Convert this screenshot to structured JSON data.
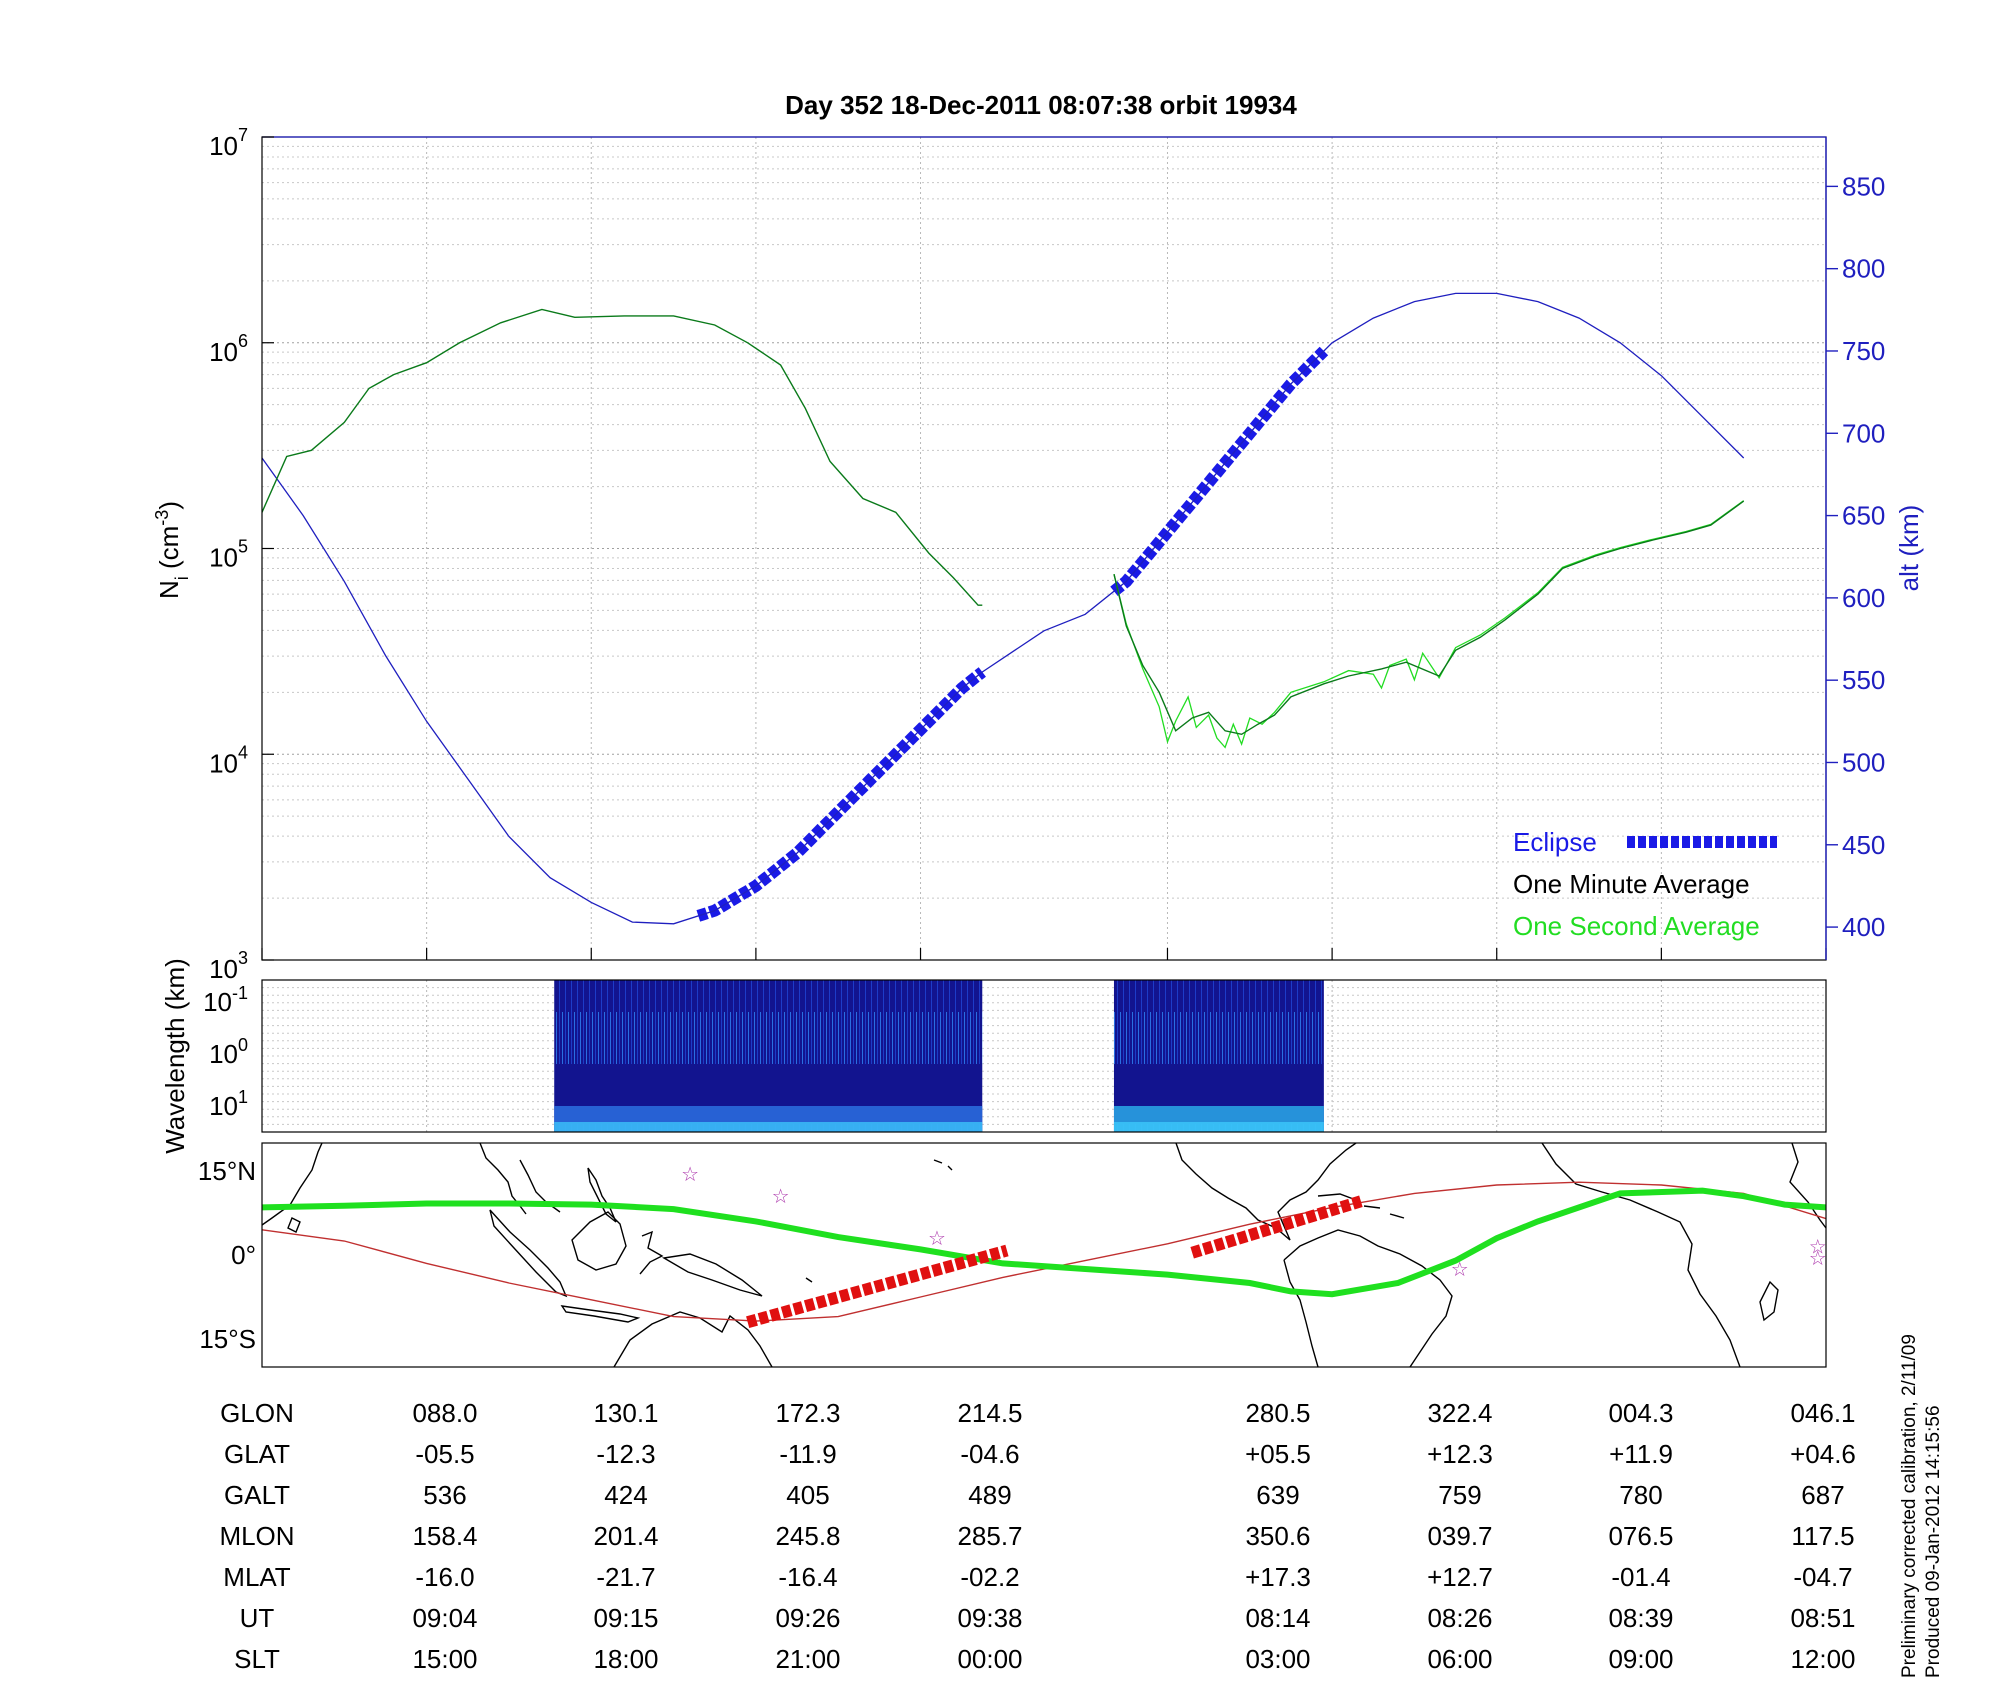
{
  "title": "Day 352  18-Dec-2011 08:07:38   orbit 19934",
  "footnote": {
    "line1": "Preliminary corrected calibration, 2/11/09",
    "line2": "Produced 09-Jan-2012 14:15:56"
  },
  "colors": {
    "density": "#0a7a1a",
    "density_second": "#22dd22",
    "altitude": "#1f1fbf",
    "eclipse": "#1a1ae6",
    "eclipse_map": "#e01010",
    "track": "#1fe01f",
    "mag_equator": "#c03030",
    "spectrogram": "#12148f",
    "stars": "#b040b0"
  },
  "chart_data": [
    {
      "type": "line",
      "title": "Day 352  18-Dec-2011 08:07:38   orbit 19934",
      "ylabel_left": {
        "main": "N",
        "sub": "i",
        "unit_pre": " (cm",
        "unit_sup": "-3",
        "unit_post": ")"
      },
      "ylabel_right": "alt (km)",
      "y_left_scale": "log",
      "y_left_lim": [
        1000,
        10000000
      ],
      "y_left_ticks": [
        {
          "base": "10",
          "exp": "3",
          "value": 1000
        },
        {
          "base": "10",
          "exp": "4",
          "value": 10000
        },
        {
          "base": "10",
          "exp": "5",
          "value": 100000
        },
        {
          "base": "10",
          "exp": "6",
          "value": 1000000
        },
        {
          "base": "10",
          "exp": "7",
          "value": 10000000
        }
      ],
      "y_right_lim": [
        380,
        880
      ],
      "y_right_ticks": [
        "400",
        "450",
        "500",
        "550",
        "600",
        "650",
        "700",
        "750",
        "800",
        "850"
      ],
      "x_ticks_ut": [
        "09:04",
        "09:15",
        "09:26",
        "09:38",
        "08:14",
        "08:26",
        "08:39",
        "08:51"
      ],
      "grid": true,
      "legend_position": "bottom-right",
      "legend": [
        "Eclipse",
        "One Minute Average",
        "One Second Average"
      ],
      "series": [
        {
          "name": "One Minute Average",
          "points": [
            [
              0.0,
              150000
            ],
            [
              0.3,
              280000
            ],
            [
              0.6,
              300000
            ],
            [
              1.0,
              410000
            ],
            [
              1.3,
              600000
            ],
            [
              1.6,
              700000
            ],
            [
              2.0,
              800000
            ],
            [
              2.4,
              1000000
            ],
            [
              2.9,
              1250000
            ],
            [
              3.4,
              1450000
            ],
            [
              3.8,
              1330000
            ],
            [
              4.4,
              1350000
            ],
            [
              5.0,
              1350000
            ],
            [
              5.5,
              1220000
            ],
            [
              5.9,
              1000000
            ],
            [
              6.3,
              780000
            ],
            [
              6.6,
              480000
            ],
            [
              6.9,
              265000
            ],
            [
              7.3,
              175000
            ],
            [
              7.7,
              150000
            ],
            [
              8.1,
              95000
            ],
            [
              8.4,
              72000
            ],
            [
              8.7,
              53000
            ],
            [
              8.75,
              53000
            ]
          ]
        },
        {
          "name": "One Minute Average",
          "points": [
            [
              10.35,
              75000
            ],
            [
              10.5,
              42000
            ],
            [
              10.7,
              27000
            ],
            [
              10.9,
              20000
            ],
            [
              11.1,
              13000
            ],
            [
              11.3,
              15000
            ],
            [
              11.5,
              16000
            ],
            [
              11.7,
              13000
            ],
            [
              11.9,
              12500
            ],
            [
              12.1,
              14000
            ],
            [
              12.3,
              15500
            ],
            [
              12.5,
              19000
            ],
            [
              12.9,
              22000
            ],
            [
              13.2,
              24000
            ],
            [
              13.6,
              26000
            ],
            [
              13.9,
              28000
            ],
            [
              14.3,
              24000
            ],
            [
              14.5,
              32000
            ],
            [
              14.8,
              37000
            ],
            [
              15.1,
              45000
            ],
            [
              15.5,
              60000
            ],
            [
              15.8,
              80000
            ],
            [
              16.2,
              92000
            ],
            [
              16.5,
              100000
            ],
            [
              16.9,
              110000
            ],
            [
              17.3,
              120000
            ],
            [
              17.6,
              130000
            ],
            [
              18.0,
              170000
            ]
          ]
        },
        {
          "name": "One Second Average",
          "points": [
            [
              10.35,
              75000
            ],
            [
              10.5,
              43000
            ],
            [
              10.7,
              26000
            ],
            [
              10.9,
              17000
            ],
            [
              11.0,
              11500
            ],
            [
              11.1,
              14500
            ],
            [
              11.25,
              19000
            ],
            [
              11.35,
              13500
            ],
            [
              11.5,
              15500
            ],
            [
              11.6,
              12000
            ],
            [
              11.7,
              10800
            ],
            [
              11.8,
              14000
            ],
            [
              11.9,
              11200
            ],
            [
              12.0,
              15000
            ],
            [
              12.15,
              14000
            ],
            [
              12.3,
              16000
            ],
            [
              12.5,
              20000
            ],
            [
              12.9,
              22500
            ],
            [
              13.2,
              25500
            ],
            [
              13.5,
              24500
            ],
            [
              13.6,
              21000
            ],
            [
              13.7,
              27000
            ],
            [
              13.9,
              29000
            ],
            [
              14.0,
              23000
            ],
            [
              14.1,
              31000
            ],
            [
              14.3,
              23500
            ],
            [
              14.5,
              33000
            ],
            [
              14.8,
              38000
            ],
            [
              15.1,
              46000
            ],
            [
              15.5,
              61000
            ],
            [
              15.8,
              81000
            ],
            [
              16.2,
              93000
            ],
            [
              16.5,
              101000
            ],
            [
              16.9,
              111000
            ],
            [
              17.3,
              121000
            ],
            [
              17.6,
              131000
            ],
            [
              18.0,
              171000
            ]
          ]
        }
      ],
      "altitude_series": {
        "name": "altitude",
        "points": [
          [
            0.0,
            685
          ],
          [
            0.5,
            650
          ],
          [
            1.0,
            610
          ],
          [
            1.5,
            565
          ],
          [
            2.0,
            525
          ],
          [
            2.5,
            490
          ],
          [
            3.0,
            455
          ],
          [
            3.5,
            430
          ],
          [
            4.0,
            415
          ],
          [
            4.5,
            403
          ],
          [
            5.0,
            402
          ],
          [
            5.5,
            410
          ],
          [
            6.0,
            425
          ],
          [
            6.5,
            445
          ],
          [
            7.0,
            470
          ],
          [
            7.5,
            495
          ],
          [
            8.0,
            520
          ],
          [
            8.5,
            545
          ],
          [
            8.75,
            555
          ],
          [
            9.5,
            580
          ],
          [
            10.0,
            590
          ],
          [
            10.5,
            610
          ],
          [
            11.0,
            640
          ],
          [
            11.5,
            670
          ],
          [
            12.0,
            700
          ],
          [
            12.5,
            730
          ],
          [
            13.0,
            755
          ],
          [
            13.5,
            770
          ],
          [
            14.0,
            780
          ],
          [
            14.5,
            785
          ],
          [
            15.0,
            785
          ],
          [
            15.5,
            780
          ],
          [
            16.0,
            770
          ],
          [
            16.5,
            755
          ],
          [
            17.0,
            735
          ],
          [
            17.5,
            710
          ],
          [
            18.0,
            685
          ]
        ]
      },
      "eclipse_segments": [
        [
          5.3,
          8.75
        ],
        [
          10.35,
          12.9
        ]
      ]
    },
    {
      "type": "heatmap",
      "ylabel": "Wavelength (km)",
      "y_ticks": [
        {
          "base": "10",
          "exp": "-1"
        },
        {
          "base": "10",
          "exp": "0"
        },
        {
          "base": "10",
          "exp": "1"
        }
      ],
      "data_segments": [
        [
          3.55,
          8.75
        ],
        [
          10.35,
          12.9
        ]
      ]
    },
    {
      "type": "line",
      "y_ticks": [
        "15°N",
        "0°",
        "15°S"
      ],
      "y_lim": [
        -20,
        20
      ],
      "legend": [],
      "series": [
        {
          "name": "track",
          "points": [
            [
              0,
              8.5
            ],
            [
              1.0,
              8.8
            ],
            [
              2.0,
              9.2
            ],
            [
              3.0,
              9.2
            ],
            [
              4.0,
              9.0
            ],
            [
              5.0,
              8.2
            ],
            [
              6.0,
              6.0
            ],
            [
              7.0,
              3.2
            ],
            [
              8.0,
              1.0
            ],
            [
              9.0,
              -1.5
            ],
            [
              10.0,
              -2.5
            ],
            [
              11.0,
              -3.5
            ],
            [
              12.0,
              -5.0
            ],
            [
              12.5,
              -6.5
            ],
            [
              13.0,
              -7.0
            ],
            [
              13.8,
              -5.0
            ],
            [
              14.5,
              -1.0
            ],
            [
              15.0,
              3.0
            ],
            [
              15.5,
              6.0
            ],
            [
              16.0,
              8.5
            ],
            [
              16.5,
              11.0
            ],
            [
              17.5,
              11.5
            ],
            [
              18.0,
              10.5
            ],
            [
              18.5,
              9.0
            ],
            [
              19.0,
              8.5
            ]
          ]
        },
        {
          "name": "mag_equator",
          "points": [
            [
              0,
              4.5
            ],
            [
              1.0,
              2.5
            ],
            [
              2.0,
              -1.5
            ],
            [
              3.0,
              -5.0
            ],
            [
              4.0,
              -8.0
            ],
            [
              5.0,
              -11.0
            ],
            [
              6.0,
              -11.8
            ],
            [
              7.0,
              -11.0
            ],
            [
              8.0,
              -7.5
            ],
            [
              9.0,
              -4.0
            ],
            [
              10.0,
              -1.0
            ],
            [
              11.0,
              2.0
            ],
            [
              12.0,
              5.5
            ],
            [
              13.0,
              8.5
            ],
            [
              14.0,
              11.0
            ],
            [
              15.0,
              12.5
            ],
            [
              16.0,
              13.0
            ],
            [
              17.0,
              12.5
            ],
            [
              18.0,
              11.0
            ],
            [
              19.0,
              6.5
            ]
          ]
        }
      ],
      "eclipse_segments": [
        {
          "x": [
            5.9,
            9.05
          ],
          "y": [
            -12.0,
            0.8
          ]
        },
        {
          "x": [
            11.3,
            13.35
          ],
          "y": [
            0.4,
            9.6
          ]
        }
      ],
      "stars": [
        [
          5.2,
          14.5
        ],
        [
          6.3,
          10.5
        ],
        [
          8.2,
          3.0
        ],
        [
          14.55,
          -2.5
        ],
        [
          18.9,
          1.5
        ],
        [
          18.9,
          -0.5
        ]
      ]
    }
  ],
  "table": {
    "rows": [
      {
        "label": "GLON",
        "values": [
          "088.0",
          "130.1",
          "172.3",
          "214.5",
          "280.5",
          "322.4",
          "004.3",
          "046.1"
        ]
      },
      {
        "label": "GLAT",
        "values": [
          "-05.5",
          "-12.3",
          "-11.9",
          "-04.6",
          "+05.5",
          "+12.3",
          "+11.9",
          "+04.6"
        ]
      },
      {
        "label": "GALT",
        "values": [
          "536",
          "424",
          "405",
          "489",
          "639",
          "759",
          "780",
          "687"
        ]
      },
      {
        "label": "MLON",
        "values": [
          "158.4",
          "201.4",
          "245.8",
          "285.7",
          "350.6",
          "039.7",
          "076.5",
          "117.5"
        ]
      },
      {
        "label": "MLAT",
        "values": [
          "-16.0",
          "-21.7",
          "-16.4",
          "-02.2",
          "+17.3",
          "+12.7",
          "-01.4",
          "-04.7"
        ]
      },
      {
        "label": "UT",
        "values": [
          "09:04",
          "09:15",
          "09:26",
          "09:38",
          "08:14",
          "08:26",
          "08:39",
          "08:51"
        ]
      },
      {
        "label": "SLT",
        "values": [
          "15:00",
          "18:00",
          "21:00",
          "00:00",
          "03:00",
          "06:00",
          "09:00",
          "12:00"
        ]
      }
    ]
  }
}
